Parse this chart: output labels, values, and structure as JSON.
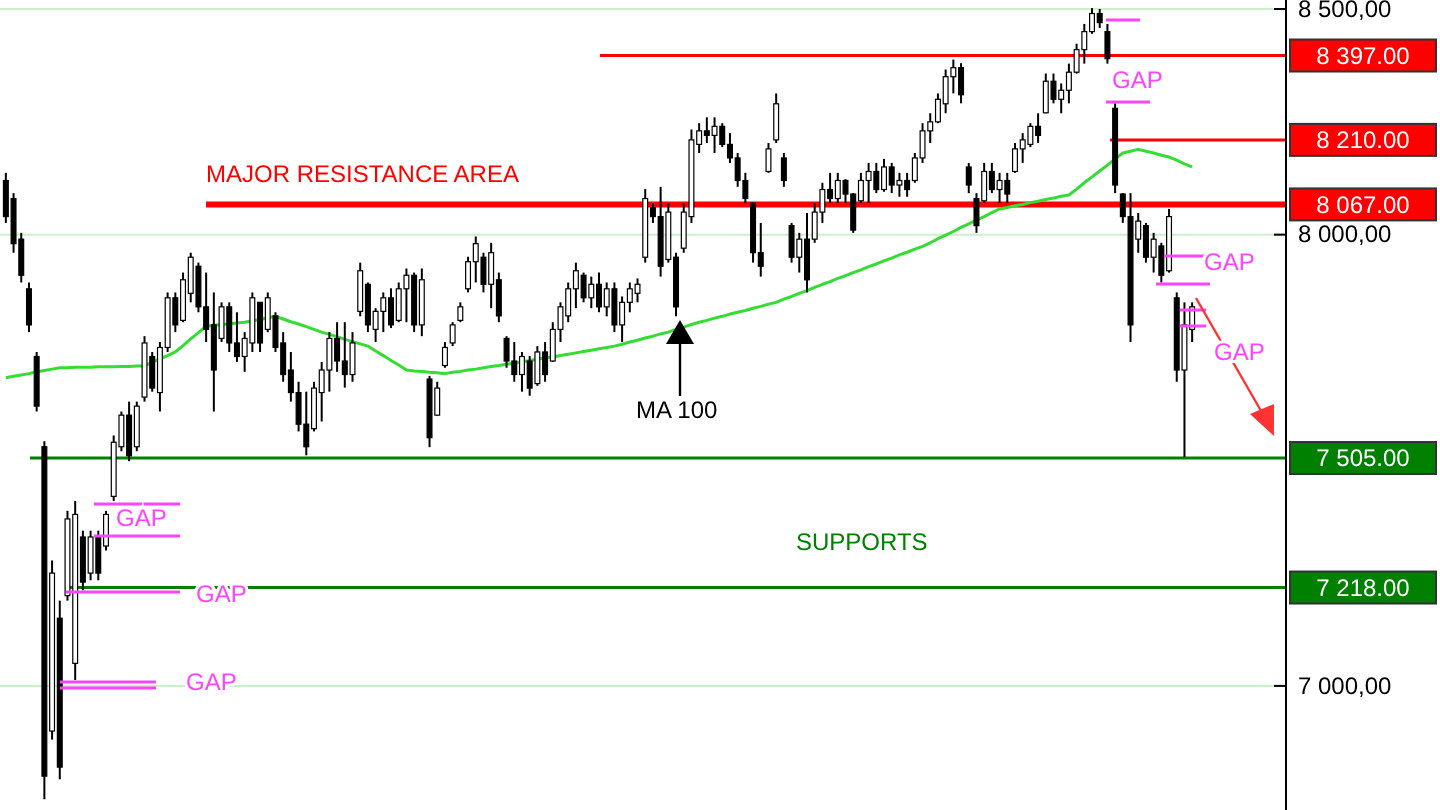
{
  "chart_data": {
    "type": "candlestick",
    "categories": [
      null,
      null,
      null,
      null,
      null,
      null,
      null,
      null,
      null,
      null,
      null,
      null,
      null,
      null,
      null,
      null,
      null,
      null,
      null,
      null,
      null,
      null,
      null,
      null,
      null,
      null,
      null,
      null,
      null,
      null,
      null,
      null,
      null,
      null,
      null,
      null,
      null,
      null,
      null,
      null,
      null,
      null,
      null,
      null,
      null,
      null,
      null,
      null,
      null,
      null,
      null,
      null,
      null,
      null,
      null,
      null,
      null,
      null,
      null,
      null,
      null,
      null,
      null,
      null,
      null,
      null,
      null,
      null,
      null,
      null,
      null,
      null,
      null,
      null,
      null,
      null,
      null,
      null,
      null,
      null,
      null,
      null,
      null,
      null,
      null,
      null,
      null,
      null,
      null,
      null,
      null,
      null,
      null,
      null,
      null,
      null,
      null,
      null,
      null,
      null,
      null,
      null,
      null,
      null,
      null,
      null,
      null,
      null,
      null,
      null,
      null,
      null,
      null,
      null,
      null,
      null,
      null,
      null,
      null,
      null,
      null,
      null,
      null,
      null,
      null,
      null,
      null,
      null,
      null,
      null,
      null,
      null,
      null,
      null,
      null,
      null,
      null,
      null,
      null,
      null,
      null,
      null,
      null,
      null,
      null,
      null,
      null,
      null,
      null,
      null,
      null,
      null,
      null,
      null,
      null
    ],
    "ohlc": [
      [
        8120,
        8137,
        8026,
        8040
      ],
      [
        8080,
        8092,
        7960,
        7980
      ],
      [
        7990,
        8004,
        7894,
        7910
      ],
      [
        7880,
        7894,
        7784,
        7800
      ],
      [
        7730,
        7740,
        7608,
        7620
      ],
      [
        7530,
        7542,
        6749,
        6800
      ],
      [
        6900,
        7278,
        6881,
        7250
      ],
      [
        7150,
        7189,
        6793,
        6820
      ],
      [
        7200,
        7388,
        7189,
        7370
      ],
      [
        7050,
        7410,
        7013,
        7380
      ],
      [
        7330,
        7344,
        7212,
        7230
      ],
      [
        7250,
        7344,
        7234,
        7330
      ],
      [
        7330,
        7344,
        7234,
        7250
      ],
      [
        7310,
        7388,
        7300,
        7380
      ],
      [
        7420,
        7555,
        7410,
        7540
      ],
      [
        7530,
        7608,
        7520,
        7600
      ],
      [
        7600,
        7630,
        7498,
        7510
      ],
      [
        7530,
        7630,
        7520,
        7620
      ],
      [
        7640,
        7775,
        7630,
        7760
      ],
      [
        7730,
        7740,
        7652,
        7660
      ],
      [
        7650,
        7762,
        7608,
        7750
      ],
      [
        7750,
        7872,
        7740,
        7860
      ],
      [
        7860,
        7872,
        7784,
        7800
      ],
      [
        7810,
        7916,
        7806,
        7900
      ],
      [
        7870,
        7960,
        7850,
        7950
      ],
      [
        7930,
        7938,
        7828,
        7840
      ],
      [
        7840,
        7916,
        7762,
        7790
      ],
      [
        7800,
        7872,
        7608,
        7700
      ],
      [
        7770,
        7850,
        7762,
        7840
      ],
      [
        7840,
        7850,
        7740,
        7760
      ],
      [
        7760,
        7828,
        7718,
        7730
      ],
      [
        7730,
        7784,
        7696,
        7770
      ],
      [
        7760,
        7872,
        7740,
        7860
      ],
      [
        7850,
        7850,
        7740,
        7760
      ],
      [
        7790,
        7872,
        7784,
        7860
      ],
      [
        7820,
        7828,
        7740,
        7750
      ],
      [
        7760,
        7784,
        7674,
        7690
      ],
      [
        7700,
        7740,
        7630,
        7650
      ],
      [
        7650,
        7674,
        7564,
        7580
      ],
      [
        7580,
        7652,
        7511,
        7530
      ],
      [
        7570,
        7674,
        7564,
        7660
      ],
      [
        7650,
        7718,
        7586,
        7700
      ],
      [
        7700,
        7784,
        7652,
        7770
      ],
      [
        7770,
        7806,
        7696,
        7720
      ],
      [
        7720,
        7806,
        7661,
        7690
      ],
      [
        7690,
        7784,
        7674,
        7760
      ],
      [
        7830,
        7938,
        7819,
        7920
      ],
      [
        7890,
        7894,
        7784,
        7800
      ],
      [
        7790,
        7837,
        7762,
        7830
      ],
      [
        7830,
        7872,
        7784,
        7860
      ],
      [
        7860,
        7881,
        7793,
        7800
      ],
      [
        7810,
        7894,
        7806,
        7880
      ],
      [
        7880,
        7925,
        7806,
        7910
      ],
      [
        7910,
        7916,
        7784,
        7800
      ],
      [
        7800,
        7925,
        7775,
        7900
      ],
      [
        7680,
        7687,
        7529,
        7550
      ],
      [
        7600,
        7674,
        7599,
        7660
      ],
      [
        7710,
        7762,
        7705,
        7750
      ],
      [
        7760,
        7806,
        7753,
        7800
      ],
      [
        7810,
        7850,
        7806,
        7840
      ],
      [
        7880,
        7951,
        7872,
        7940
      ],
      [
        7940,
        7996,
        7894,
        7980
      ],
      [
        7950,
        7960,
        7872,
        7890
      ],
      [
        7890,
        7982,
        7837,
        7960
      ],
      [
        7900,
        7916,
        7806,
        7820
      ],
      [
        7770,
        7775,
        7705,
        7720
      ],
      [
        7720,
        7762,
        7674,
        7690
      ],
      [
        7690,
        7740,
        7652,
        7730
      ],
      [
        7720,
        7731,
        7643,
        7660
      ],
      [
        7670,
        7753,
        7665,
        7740
      ],
      [
        7740,
        7762,
        7674,
        7690
      ],
      [
        7720,
        7806,
        7718,
        7790
      ],
      [
        7790,
        7850,
        7762,
        7840
      ],
      [
        7820,
        7894,
        7806,
        7880
      ],
      [
        7880,
        7938,
        7837,
        7920
      ],
      [
        7910,
        7916,
        7850,
        7860
      ],
      [
        7860,
        7907,
        7837,
        7890
      ],
      [
        7890,
        7916,
        7828,
        7840
      ],
      [
        7840,
        7894,
        7819,
        7880
      ],
      [
        7880,
        7894,
        7784,
        7800
      ],
      [
        7800,
        7863,
        7762,
        7850
      ],
      [
        7850,
        7894,
        7828,
        7880
      ],
      [
        7870,
        7903,
        7850,
        7890
      ],
      [
        7950,
        8101,
        7938,
        8080
      ],
      [
        8060,
        8070,
        8026,
        8040
      ],
      [
        8040,
        8106,
        7907,
        7930
      ],
      [
        7945,
        8070,
        7938,
        8050
      ],
      [
        7950,
        7960,
        7819,
        7840
      ],
      [
        7970,
        8070,
        7960,
        8050
      ],
      [
        8040,
        8233,
        8026,
        8210
      ],
      [
        8200,
        8247,
        8181,
        8230
      ],
      [
        8230,
        8260,
        8203,
        8220
      ],
      [
        8220,
        8260,
        8181,
        8240
      ],
      [
        8240,
        8247,
        8194,
        8200
      ],
      [
        8200,
        8225,
        8159,
        8170
      ],
      [
        8170,
        8181,
        8106,
        8120
      ],
      [
        8120,
        8137,
        8070,
        8080
      ],
      [
        8070,
        8070,
        7938,
        7960
      ],
      [
        7960,
        8026,
        7907,
        7930
      ],
      [
        8140,
        8203,
        8137,
        8190
      ],
      [
        8210,
        8313,
        8203,
        8290
      ],
      [
        8170,
        8181,
        8106,
        8120
      ],
      [
        8020,
        8026,
        7938,
        7950
      ],
      [
        7950,
        8004,
        7916,
        7990
      ],
      [
        7990,
        8048,
        7872,
        7900
      ],
      [
        7990,
        8070,
        7982,
        8050
      ],
      [
        8050,
        8115,
        8026,
        8100
      ],
      [
        8100,
        8137,
        8070,
        8080
      ],
      [
        8080,
        8137,
        8070,
        8120
      ],
      [
        8120,
        8123,
        8070,
        8090
      ],
      [
        8090,
        8092,
        8004,
        8010
      ],
      [
        8075,
        8137,
        8070,
        8120
      ],
      [
        8120,
        8159,
        8070,
        8140
      ],
      [
        8140,
        8159,
        8092,
        8100
      ],
      [
        8100,
        8168,
        8095,
        8150
      ],
      [
        8150,
        8159,
        8092,
        8110
      ],
      [
        8110,
        8137,
        8084,
        8120
      ],
      [
        8120,
        8137,
        8084,
        8100
      ],
      [
        8120,
        8181,
        8115,
        8170
      ],
      [
        8170,
        8247,
        8159,
        8230
      ],
      [
        8230,
        8269,
        8203,
        8250
      ],
      [
        8250,
        8313,
        8247,
        8300
      ],
      [
        8290,
        8366,
        8269,
        8350
      ],
      [
        8350,
        8388,
        8313,
        8370
      ],
      [
        8370,
        8380,
        8291,
        8310
      ],
      [
        8150,
        8159,
        8092,
        8110
      ],
      [
        8080,
        8092,
        8004,
        8020
      ],
      [
        8075,
        8159,
        8070,
        8140
      ],
      [
        8140,
        8159,
        8092,
        8100
      ],
      [
        8100,
        8137,
        8070,
        8120
      ],
      [
        8120,
        8137,
        8070,
        8090
      ],
      [
        8140,
        8203,
        8137,
        8190
      ],
      [
        8190,
        8225,
        8159,
        8210
      ],
      [
        8200,
        8247,
        8194,
        8240
      ],
      [
        8240,
        8269,
        8203,
        8220
      ],
      [
        8270,
        8357,
        8269,
        8340
      ],
      [
        8340,
        8357,
        8291,
        8300
      ],
      [
        8300,
        8335,
        8269,
        8320
      ],
      [
        8320,
        8379,
        8291,
        8360
      ],
      [
        8360,
        8423,
        8357,
        8410
      ],
      [
        8410,
        8467,
        8379,
        8450
      ],
      [
        8450,
        8502,
        8445,
        8490
      ],
      [
        8490,
        8500,
        8458,
        8470
      ],
      [
        8450,
        8467,
        8379,
        8390
      ],
      [
        8280,
        8291,
        8092,
        8110
      ],
      [
        8090,
        8092,
        8026,
        8040
      ],
      [
        8040,
        8092,
        7762,
        7800
      ],
      [
        7990,
        8048,
        7960,
        8030
      ],
      [
        8020,
        8026,
        7938,
        7950
      ],
      [
        7950,
        8004,
        7916,
        7990
      ],
      [
        7975,
        7982,
        7894,
        7910
      ],
      [
        7920,
        8057,
        7916,
        8040
      ],
      [
        7860,
        7872,
        7674,
        7700
      ],
      [
        7700,
        7850,
        7507,
        7800
      ],
      [
        7790,
        7850,
        7762,
        7840
      ]
    ],
    "series": [
      {
        "type": "line",
        "color": "#33dd33",
        "values": [
          7683,
          7686,
          7689,
          7692,
          7696,
          7699,
          7702,
          7705,
          7705,
          7706,
          7706,
          7706,
          7707,
          7707,
          7707,
          7708,
          7708,
          7709,
          7709,
          7717,
          7725,
          7732,
          7740,
          7754,
          7769,
          7783,
          7797,
          7799,
          7801,
          7802,
          7804,
          7806,
          7809,
          7812,
          7816,
          7819,
          7813,
          7807,
          7802,
          7796,
          7790,
          7784,
          7779,
          7774,
          7768,
          7763,
          7758,
          7753,
          7742,
          7732,
          7721,
          7711,
          7700,
          7698,
          7697,
          7695,
          7694,
          7692,
          7695,
          7697,
          7700,
          7702,
          7705,
          7708,
          7710,
          7713,
          7715,
          7718,
          7721,
          7724,
          7727,
          7729,
          7732,
          7735,
          7738,
          7741,
          7744,
          7747,
          7750,
          7753,
          7757,
          7762,
          7766,
          7771,
          7775,
          7780,
          7784,
          7790,
          7795,
          7801,
          7806,
          7810,
          7815,
          7819,
          7824,
          7828,
          7832,
          7837,
          7841,
          7846,
          7850,
          7857,
          7863,
          7870,
          7876,
          7883,
          7890,
          7896,
          7903,
          7909,
          7916,
          7922,
          7929,
          7935,
          7942,
          7948,
          7955,
          7961,
          7968,
          7974,
          7982,
          7991,
          7999,
          8007,
          8016,
          8024,
          8032,
          8040,
          8049,
          8057,
          8060,
          8064,
          8067,
          8071,
          8074,
          8078,
          8081,
          8085,
          8088,
          8101,
          8115,
          8128,
          8141,
          8154,
          8168,
          8181,
          8185,
          8189,
          8185,
          8181,
          8176,
          8172,
          8165,
          8157,
          8150
        ]
      }
    ],
    "ylim": [
      6725,
      8520
    ],
    "yticks": [
      {
        "value": 7000,
        "label": "7 000,00"
      },
      {
        "value": 8000,
        "label": "8 000,00"
      },
      {
        "value": 8500,
        "label": "8 500,00"
      }
    ],
    "grid": "y",
    "ref_lines": [
      {
        "axis": "y",
        "value": 8397,
        "label": "8 397.00",
        "color": "#ff0000"
      },
      {
        "axis": "y",
        "value": 8210,
        "label": "8 210.00",
        "color": "#ff0000"
      },
      {
        "axis": "y",
        "value": 8067,
        "label": "8 067.00",
        "color": "#ff0000"
      },
      {
        "axis": "y",
        "value": 7505,
        "label": "7 505.00",
        "color": "#008000"
      },
      {
        "axis": "y",
        "value": 7218,
        "label": "7 218.00",
        "color": "#008000"
      }
    ],
    "annotations": [
      "MAJOR RESISTANCE AREA",
      "MA 100",
      "SUPPORTS",
      "GAP",
      "GAP",
      "GAP",
      "GAP",
      "GAP",
      "GAP"
    ]
  }
}
